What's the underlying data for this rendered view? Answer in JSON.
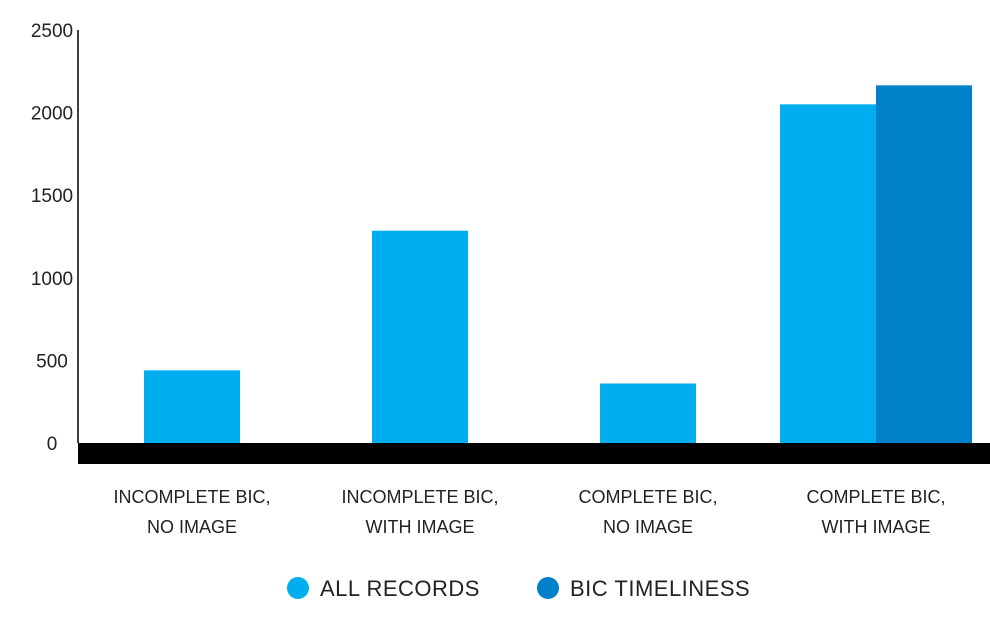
{
  "chart_data": {
    "type": "bar",
    "categories": [
      [
        "INCOMPLETE BIC,",
        "NO IMAGE"
      ],
      [
        "INCOMPLETE BIC,",
        "WITH IMAGE"
      ],
      [
        "COMPLETE BIC,",
        "NO IMAGE"
      ],
      [
        "COMPLETE BIC,",
        "WITH IMAGE"
      ]
    ],
    "series": [
      {
        "name": "ALL RECORDS",
        "color": "#00aeef",
        "values": [
          440,
          1285,
          360,
          2050
        ]
      },
      {
        "name": "BIC TIMELINESS",
        "color": "#0080c8",
        "values": [
          null,
          null,
          null,
          2165
        ]
      }
    ],
    "yticks": [
      0,
      500,
      1000,
      1500,
      2000,
      2500
    ],
    "ylim": [
      0,
      2500
    ],
    "grid": false,
    "legend": "bottom-center",
    "title": "",
    "xlabel": "",
    "ylabel": ""
  }
}
